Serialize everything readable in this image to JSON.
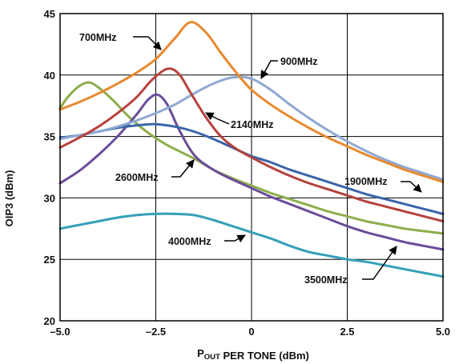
{
  "chart_data": {
    "type": "line",
    "title": "",
    "xlabel_main": "P",
    "xlabel_sub": "OUT",
    "xlabel_rest": " PER TONE (dBm)",
    "ylabel": "OIP3 (dBm)",
    "xlim": [
      -5.0,
      5.0
    ],
    "ylim": [
      20,
      45
    ],
    "x_ticks": [
      -5.0,
      -2.5,
      0,
      2.5,
      5.0
    ],
    "x_tick_labels": [
      "–5.0",
      "–2.5",
      "0",
      "2.5",
      "5.0"
    ],
    "y_ticks": [
      20,
      25,
      30,
      35,
      40,
      45
    ],
    "y_tick_labels": [
      "20",
      "25",
      "30",
      "35",
      "40",
      "45"
    ],
    "grid": true,
    "series": [
      {
        "name": "700MHz",
        "color": "#e8892f",
        "points": [
          [
            -5.0,
            37.2
          ],
          [
            -4.5,
            37.8
          ],
          [
            -4.0,
            38.5
          ],
          [
            -3.5,
            39.3
          ],
          [
            -3.0,
            40.2
          ],
          [
            -2.5,
            41.3
          ],
          [
            -2.0,
            43.0
          ],
          [
            -1.6,
            44.3
          ],
          [
            -1.2,
            43.5
          ],
          [
            -0.8,
            41.8
          ],
          [
            -0.4,
            40.2
          ],
          [
            0.0,
            38.8
          ],
          [
            0.5,
            37.6
          ],
          [
            1.0,
            36.6
          ],
          [
            1.5,
            35.7
          ],
          [
            2.0,
            34.9
          ],
          [
            2.5,
            34.2
          ],
          [
            3.0,
            33.5
          ],
          [
            3.5,
            32.9
          ],
          [
            4.0,
            32.3
          ],
          [
            4.5,
            31.8
          ],
          [
            5.0,
            31.3
          ]
        ]
      },
      {
        "name": "900MHz",
        "color": "#8fa9d1",
        "points": [
          [
            -5.0,
            34.8
          ],
          [
            -4.5,
            35.1
          ],
          [
            -4.0,
            35.4
          ],
          [
            -3.5,
            35.8
          ],
          [
            -3.0,
            36.3
          ],
          [
            -2.5,
            36.9
          ],
          [
            -2.0,
            37.6
          ],
          [
            -1.5,
            38.5
          ],
          [
            -1.0,
            39.3
          ],
          [
            -0.5,
            39.8
          ],
          [
            0.0,
            39.7
          ],
          [
            0.5,
            38.8
          ],
          [
            1.0,
            37.6
          ],
          [
            1.5,
            36.5
          ],
          [
            2.0,
            35.5
          ],
          [
            2.5,
            34.6
          ],
          [
            3.0,
            33.8
          ],
          [
            3.5,
            33.1
          ],
          [
            4.0,
            32.5
          ],
          [
            4.5,
            32.0
          ],
          [
            5.0,
            31.5
          ]
        ]
      },
      {
        "name": "2140MHz",
        "color": "#b5433e",
        "points": [
          [
            -5.0,
            34.1
          ],
          [
            -4.5,
            34.9
          ],
          [
            -4.0,
            35.8
          ],
          [
            -3.5,
            36.9
          ],
          [
            -3.0,
            38.2
          ],
          [
            -2.6,
            39.6
          ],
          [
            -2.2,
            40.5
          ],
          [
            -1.9,
            40.1
          ],
          [
            -1.6,
            38.6
          ],
          [
            -1.2,
            36.6
          ],
          [
            -0.8,
            35.0
          ],
          [
            -0.4,
            34.0
          ],
          [
            0.0,
            33.3
          ],
          [
            0.5,
            32.5
          ],
          [
            1.0,
            31.8
          ],
          [
            1.5,
            31.2
          ],
          [
            2.0,
            30.7
          ],
          [
            2.5,
            30.2
          ],
          [
            3.0,
            29.7
          ],
          [
            3.5,
            29.3
          ],
          [
            4.0,
            28.9
          ],
          [
            4.5,
            28.5
          ],
          [
            5.0,
            28.1
          ]
        ]
      },
      {
        "name": "1900MHz",
        "color": "#3a65a8",
        "points": [
          [
            -5.0,
            34.9
          ],
          [
            -4.5,
            35.1
          ],
          [
            -4.0,
            35.4
          ],
          [
            -3.5,
            35.7
          ],
          [
            -3.0,
            35.9
          ],
          [
            -2.5,
            36.0
          ],
          [
            -2.0,
            35.8
          ],
          [
            -1.5,
            35.4
          ],
          [
            -1.0,
            34.8
          ],
          [
            -0.5,
            34.1
          ],
          [
            0.0,
            33.4
          ],
          [
            0.5,
            32.9
          ],
          [
            1.0,
            32.3
          ],
          [
            1.5,
            31.8
          ],
          [
            2.0,
            31.3
          ],
          [
            2.5,
            30.8
          ],
          [
            3.0,
            30.3
          ],
          [
            3.5,
            29.9
          ],
          [
            4.0,
            29.5
          ],
          [
            4.5,
            29.1
          ],
          [
            5.0,
            28.7
          ]
        ]
      },
      {
        "name": "2600MHz",
        "color": "#6b4d9a",
        "points": [
          [
            -5.0,
            31.2
          ],
          [
            -4.5,
            32.2
          ],
          [
            -4.0,
            33.5
          ],
          [
            -3.5,
            35.0
          ],
          [
            -3.0,
            36.8
          ],
          [
            -2.7,
            38.0
          ],
          [
            -2.45,
            38.4
          ],
          [
            -2.2,
            37.6
          ],
          [
            -1.9,
            35.6
          ],
          [
            -1.5,
            33.5
          ],
          [
            -1.0,
            32.3
          ],
          [
            -0.5,
            31.5
          ],
          [
            0.0,
            30.8
          ],
          [
            0.5,
            30.1
          ],
          [
            1.0,
            29.5
          ],
          [
            1.5,
            28.9
          ],
          [
            2.0,
            28.3
          ],
          [
            2.5,
            27.7
          ],
          [
            3.0,
            27.2
          ],
          [
            3.5,
            26.8
          ],
          [
            4.0,
            26.4
          ],
          [
            4.5,
            26.1
          ],
          [
            5.0,
            25.8
          ]
        ]
      },
      {
        "name": "3500MHz",
        "color": "#8cae4c",
        "points": [
          [
            -5.0,
            37.3
          ],
          [
            -4.8,
            38.2
          ],
          [
            -4.5,
            39.1
          ],
          [
            -4.25,
            39.4
          ],
          [
            -4.0,
            39.0
          ],
          [
            -3.6,
            37.9
          ],
          [
            -3.2,
            36.6
          ],
          [
            -2.7,
            35.3
          ],
          [
            -2.2,
            34.3
          ],
          [
            -1.5,
            33.2
          ],
          [
            -1.0,
            32.3
          ],
          [
            -0.5,
            31.6
          ],
          [
            0.0,
            31.0
          ],
          [
            0.5,
            30.4
          ],
          [
            1.0,
            29.9
          ],
          [
            1.5,
            29.4
          ],
          [
            2.0,
            28.9
          ],
          [
            2.5,
            28.5
          ],
          [
            3.0,
            28.1
          ],
          [
            3.5,
            27.8
          ],
          [
            4.0,
            27.5
          ],
          [
            4.5,
            27.3
          ],
          [
            5.0,
            27.1
          ]
        ]
      },
      {
        "name": "4000MHz",
        "color": "#35a0b8",
        "points": [
          [
            -5.0,
            27.5
          ],
          [
            -4.5,
            27.8
          ],
          [
            -4.0,
            28.1
          ],
          [
            -3.5,
            28.4
          ],
          [
            -3.0,
            28.6
          ],
          [
            -2.5,
            28.7
          ],
          [
            -2.0,
            28.7
          ],
          [
            -1.5,
            28.6
          ],
          [
            -1.0,
            28.2
          ],
          [
            -0.5,
            27.7
          ],
          [
            0.0,
            27.2
          ],
          [
            0.5,
            26.7
          ],
          [
            1.0,
            26.1
          ],
          [
            1.5,
            25.6
          ],
          [
            2.0,
            25.3
          ],
          [
            2.5,
            25.0
          ],
          [
            3.0,
            24.8
          ],
          [
            3.5,
            24.5
          ],
          [
            4.0,
            24.2
          ],
          [
            4.5,
            23.9
          ],
          [
            5.0,
            23.6
          ]
        ]
      }
    ],
    "annotations": [
      {
        "text": "700MHz",
        "series": "700MHz"
      },
      {
        "text": "900MHz",
        "series": "900MHz"
      },
      {
        "text": "2140MHz",
        "series": "2140MHz"
      },
      {
        "text": "2600MHz",
        "series": "2600MHz"
      },
      {
        "text": "1900MHz",
        "series": "1900MHz"
      },
      {
        "text": "4000MHz",
        "series": "4000MHz"
      },
      {
        "text": "3500MHz",
        "series": "3500MHz"
      }
    ]
  }
}
